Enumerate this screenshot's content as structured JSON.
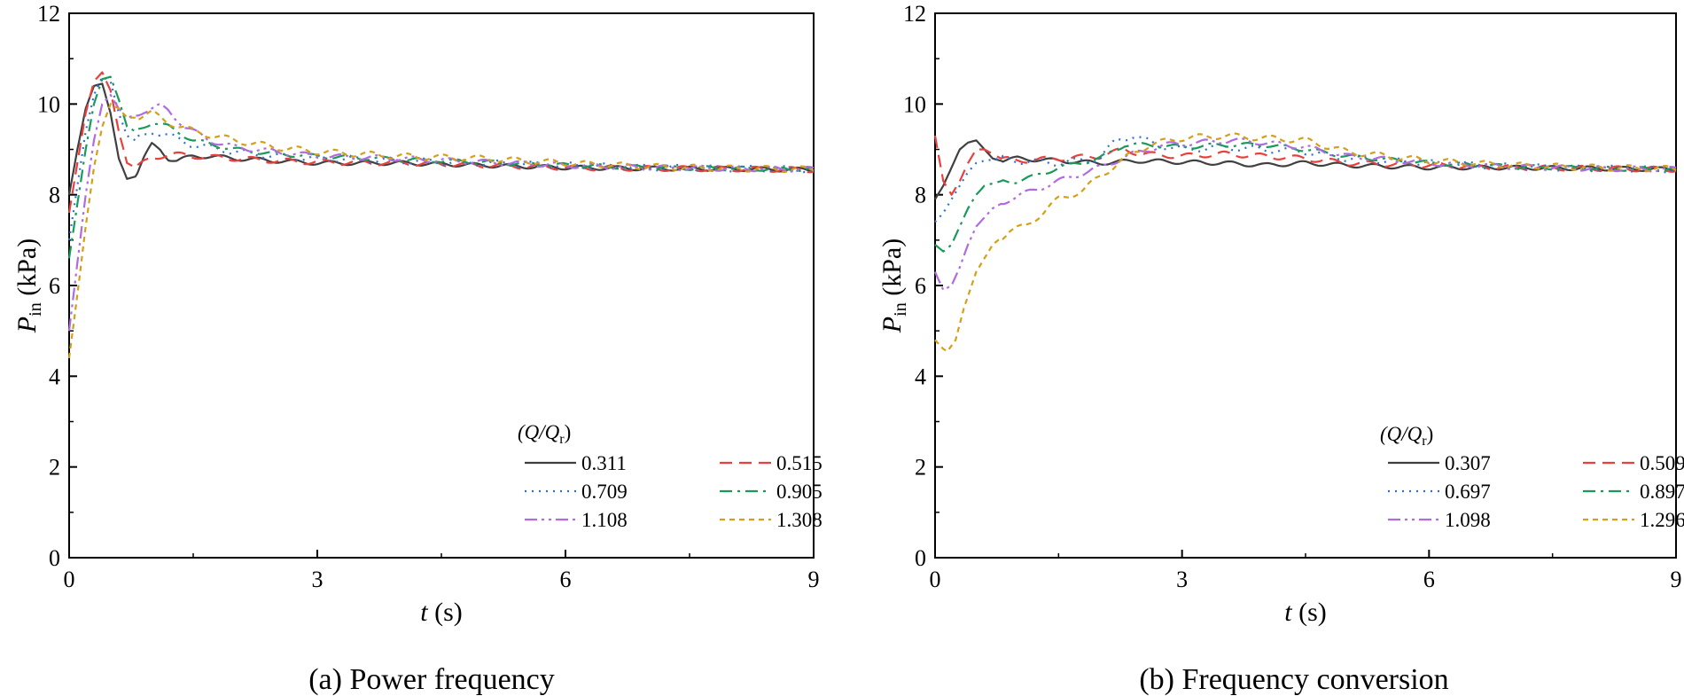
{
  "chart_data": [
    {
      "type": "line",
      "caption": "(a) Power frequency",
      "xlabel": {
        "var": "t",
        "unit": "(s)"
      },
      "ylabel": {
        "var": "P",
        "sub": "in",
        "unit": "(kPa)"
      },
      "xlim": [
        0,
        9
      ],
      "ylim": [
        0,
        12
      ],
      "xticks": [
        "0",
        "3",
        "6",
        "9"
      ],
      "yticks": [
        "0",
        "2",
        "4",
        "6",
        "8",
        "10",
        "12"
      ],
      "legend": {
        "title": "(Q/Q",
        "title_sub": "r",
        "title_close": ")",
        "placement": "lower-right"
      },
      "series": [
        {
          "name": "0.311",
          "color": "#404040",
          "dash": "solid",
          "x": [
            0,
            0.1,
            0.2,
            0.3,
            0.4,
            0.5,
            0.6,
            0.7,
            0.8,
            0.9,
            1.0,
            1.1,
            1.2,
            1.3,
            1.5,
            1.7,
            2.0,
            2.5,
            3.0,
            4.0,
            5.0,
            6.0,
            7.0,
            8.0,
            9.0
          ],
          "y": [
            8.0,
            9.0,
            9.9,
            10.4,
            10.45,
            9.8,
            8.8,
            8.35,
            8.4,
            8.8,
            9.1,
            9.0,
            8.8,
            8.75,
            8.85,
            8.85,
            8.8,
            8.75,
            8.7,
            8.7,
            8.65,
            8.6,
            8.58,
            8.57,
            8.55
          ]
        },
        {
          "name": "0.515",
          "color": "#e8413c",
          "dash": "dashed",
          "x": [
            0,
            0.1,
            0.2,
            0.3,
            0.4,
            0.5,
            0.6,
            0.7,
            0.8,
            0.9,
            1.0,
            1.2,
            1.5,
            2.0,
            2.5,
            3.0,
            4.0,
            5.0,
            6.0,
            7.0,
            8.0,
            9.0
          ],
          "y": [
            7.6,
            8.7,
            9.8,
            10.5,
            10.7,
            10.3,
            9.4,
            8.7,
            8.6,
            8.7,
            8.8,
            8.9,
            8.85,
            8.8,
            8.75,
            8.72,
            8.7,
            8.65,
            8.6,
            8.58,
            8.57,
            8.55
          ]
        },
        {
          "name": "0.709",
          "color": "#2e6fd6",
          "dash": "dotted",
          "x": [
            0,
            0.1,
            0.2,
            0.3,
            0.4,
            0.5,
            0.6,
            0.7,
            0.8,
            0.9,
            1.0,
            1.2,
            1.5,
            2.0,
            2.5,
            3.0,
            4.0,
            5.0,
            6.0,
            7.0,
            8.0,
            9.0
          ],
          "y": [
            7.0,
            8.2,
            9.4,
            10.2,
            10.6,
            10.5,
            9.8,
            9.3,
            9.2,
            9.3,
            9.4,
            9.3,
            9.1,
            8.95,
            8.85,
            8.8,
            8.75,
            8.7,
            8.65,
            8.6,
            8.58,
            8.56
          ]
        },
        {
          "name": "0.905",
          "color": "#1a9a5a",
          "dash": "dashdot",
          "x": [
            0,
            0.1,
            0.2,
            0.3,
            0.4,
            0.5,
            0.6,
            0.7,
            0.8,
            0.9,
            1.0,
            1.2,
            1.5,
            2.0,
            2.5,
            3.0,
            4.0,
            5.0,
            6.0,
            7.0,
            8.0,
            9.0
          ],
          "y": [
            6.6,
            7.8,
            9.0,
            10.0,
            10.55,
            10.6,
            10.1,
            9.5,
            9.4,
            9.5,
            9.6,
            9.5,
            9.2,
            9.0,
            8.9,
            8.85,
            8.78,
            8.72,
            8.65,
            8.6,
            8.58,
            8.56
          ]
        },
        {
          "name": "1.108",
          "color": "#b06be0",
          "dash": "dashdotdot",
          "x": [
            0,
            0.1,
            0.2,
            0.3,
            0.4,
            0.5,
            0.6,
            0.7,
            0.8,
            0.9,
            1.0,
            1.1,
            1.2,
            1.4,
            1.7,
            2.0,
            2.5,
            3.0,
            4.0,
            5.0,
            6.0,
            7.0,
            8.0,
            9.0
          ],
          "y": [
            5.0,
            6.5,
            8.0,
            9.2,
            10.0,
            10.2,
            9.9,
            9.7,
            9.75,
            9.85,
            9.9,
            9.95,
            9.85,
            9.5,
            9.2,
            9.05,
            8.95,
            8.85,
            8.8,
            8.72,
            8.65,
            8.6,
            8.58,
            8.56
          ]
        },
        {
          "name": "1.308",
          "color": "#d4a017",
          "dash": "shortdash",
          "x": [
            0,
            0.1,
            0.2,
            0.3,
            0.4,
            0.5,
            0.6,
            0.7,
            0.8,
            0.9,
            1.0,
            1.2,
            1.5,
            2.0,
            2.5,
            3.0,
            4.0,
            5.0,
            6.0,
            7.0,
            8.0,
            9.0
          ],
          "y": [
            4.4,
            5.8,
            7.3,
            8.6,
            9.5,
            10.0,
            9.9,
            9.7,
            9.7,
            9.75,
            9.8,
            9.6,
            9.4,
            9.2,
            9.05,
            8.95,
            8.85,
            8.8,
            8.7,
            8.62,
            8.58,
            8.56
          ]
        }
      ]
    },
    {
      "type": "line",
      "caption": "(b) Frequency conversion",
      "xlabel": {
        "var": "t",
        "unit": "(s)"
      },
      "ylabel": {
        "var": "P",
        "sub": "in",
        "unit": "(kPa)"
      },
      "xlim": [
        0,
        9
      ],
      "ylim": [
        0,
        12
      ],
      "xticks": [
        "0",
        "3",
        "6",
        "9"
      ],
      "yticks": [
        "0",
        "2",
        "4",
        "6",
        "8",
        "10",
        "12"
      ],
      "legend": {
        "title": "(Q/Q",
        "title_sub": "r",
        "title_close": ")",
        "placement": "lower-right"
      },
      "series": [
        {
          "name": "0.307",
          "color": "#404040",
          "dash": "solid",
          "x": [
            0,
            0.1,
            0.2,
            0.3,
            0.4,
            0.5,
            0.6,
            0.7,
            0.8,
            1.0,
            1.5,
            2.0,
            2.5,
            3.0,
            3.5,
            4.0,
            4.5,
            5.0,
            6.0,
            7.0,
            8.0,
            9.0
          ],
          "y": [
            7.9,
            8.2,
            8.6,
            9.0,
            9.15,
            9.2,
            9.0,
            8.8,
            8.75,
            8.8,
            8.75,
            8.7,
            8.75,
            8.72,
            8.7,
            8.65,
            8.7,
            8.65,
            8.6,
            8.6,
            8.58,
            8.56
          ]
        },
        {
          "name": "0.509",
          "color": "#e8413c",
          "dash": "dashed",
          "x": [
            0,
            0.05,
            0.1,
            0.2,
            0.3,
            0.4,
            0.5,
            0.6,
            0.7,
            0.8,
            1.0,
            1.5,
            2.0,
            2.3,
            2.5,
            3.0,
            3.5,
            4.0,
            4.5,
            5.0,
            6.0,
            7.0,
            8.0,
            9.0
          ],
          "y": [
            9.3,
            8.8,
            8.3,
            8.0,
            8.3,
            8.7,
            9.0,
            9.0,
            8.9,
            8.8,
            8.75,
            8.8,
            8.85,
            9.0,
            8.9,
            8.85,
            8.9,
            8.85,
            8.8,
            8.7,
            8.65,
            8.6,
            8.58,
            8.56
          ]
        },
        {
          "name": "0.697",
          "color": "#2e6fd6",
          "dash": "dotted",
          "x": [
            0,
            0.1,
            0.2,
            0.3,
            0.4,
            0.5,
            0.6,
            0.8,
            1.0,
            1.5,
            2.0,
            2.2,
            2.4,
            2.7,
            3.0,
            3.5,
            4.0,
            4.5,
            5.0,
            6.0,
            7.0,
            8.0,
            9.0
          ],
          "y": [
            7.4,
            7.6,
            7.9,
            8.2,
            8.5,
            8.7,
            8.75,
            8.8,
            8.75,
            8.7,
            8.8,
            9.2,
            9.3,
            9.1,
            9.0,
            9.05,
            9.0,
            8.95,
            8.8,
            8.7,
            8.62,
            8.58,
            8.56
          ]
        },
        {
          "name": "0.897",
          "color": "#1a9a5a",
          "dash": "dashdot",
          "x": [
            0,
            0.1,
            0.2,
            0.3,
            0.4,
            0.5,
            0.6,
            0.8,
            1.0,
            1.2,
            1.5,
            2.0,
            2.3,
            2.6,
            3.0,
            3.5,
            4.0,
            4.5,
            5.0,
            6.0,
            7.0,
            8.0,
            9.0
          ],
          "y": [
            6.9,
            6.75,
            6.9,
            7.3,
            7.7,
            8.0,
            8.2,
            8.3,
            8.3,
            8.4,
            8.6,
            8.8,
            9.1,
            9.1,
            9.05,
            9.1,
            9.1,
            9.0,
            8.85,
            8.7,
            8.62,
            8.58,
            8.56
          ]
        },
        {
          "name": "1.098",
          "color": "#b06be0",
          "dash": "dashdotdot",
          "x": [
            0,
            0.1,
            0.2,
            0.3,
            0.4,
            0.5,
            0.7,
            0.9,
            1.2,
            1.5,
            2.0,
            2.4,
            2.8,
            3.2,
            3.6,
            4.0,
            4.5,
            5.0,
            6.0,
            7.0,
            8.0,
            9.0
          ],
          "y": [
            6.3,
            5.9,
            6.0,
            6.4,
            6.9,
            7.3,
            7.7,
            7.9,
            8.1,
            8.3,
            8.6,
            8.9,
            9.1,
            9.15,
            9.2,
            9.15,
            9.05,
            8.85,
            8.7,
            8.62,
            8.58,
            8.56
          ]
        },
        {
          "name": "1.296",
          "color": "#d4a017",
          "dash": "shortdash",
          "x": [
            0,
            0.1,
            0.15,
            0.25,
            0.35,
            0.5,
            0.7,
            0.9,
            1.1,
            1.3,
            1.5,
            1.8,
            2.0,
            2.3,
            2.6,
            3.0,
            3.5,
            4.0,
            4.5,
            5.0,
            6.0,
            7.0,
            8.0,
            9.0
          ],
          "y": [
            4.8,
            4.6,
            4.55,
            4.8,
            5.5,
            6.3,
            6.9,
            7.2,
            7.3,
            7.6,
            7.9,
            8.1,
            8.4,
            8.8,
            9.1,
            9.25,
            9.3,
            9.25,
            9.2,
            8.95,
            8.75,
            8.65,
            8.6,
            8.57
          ]
        }
      ]
    }
  ]
}
